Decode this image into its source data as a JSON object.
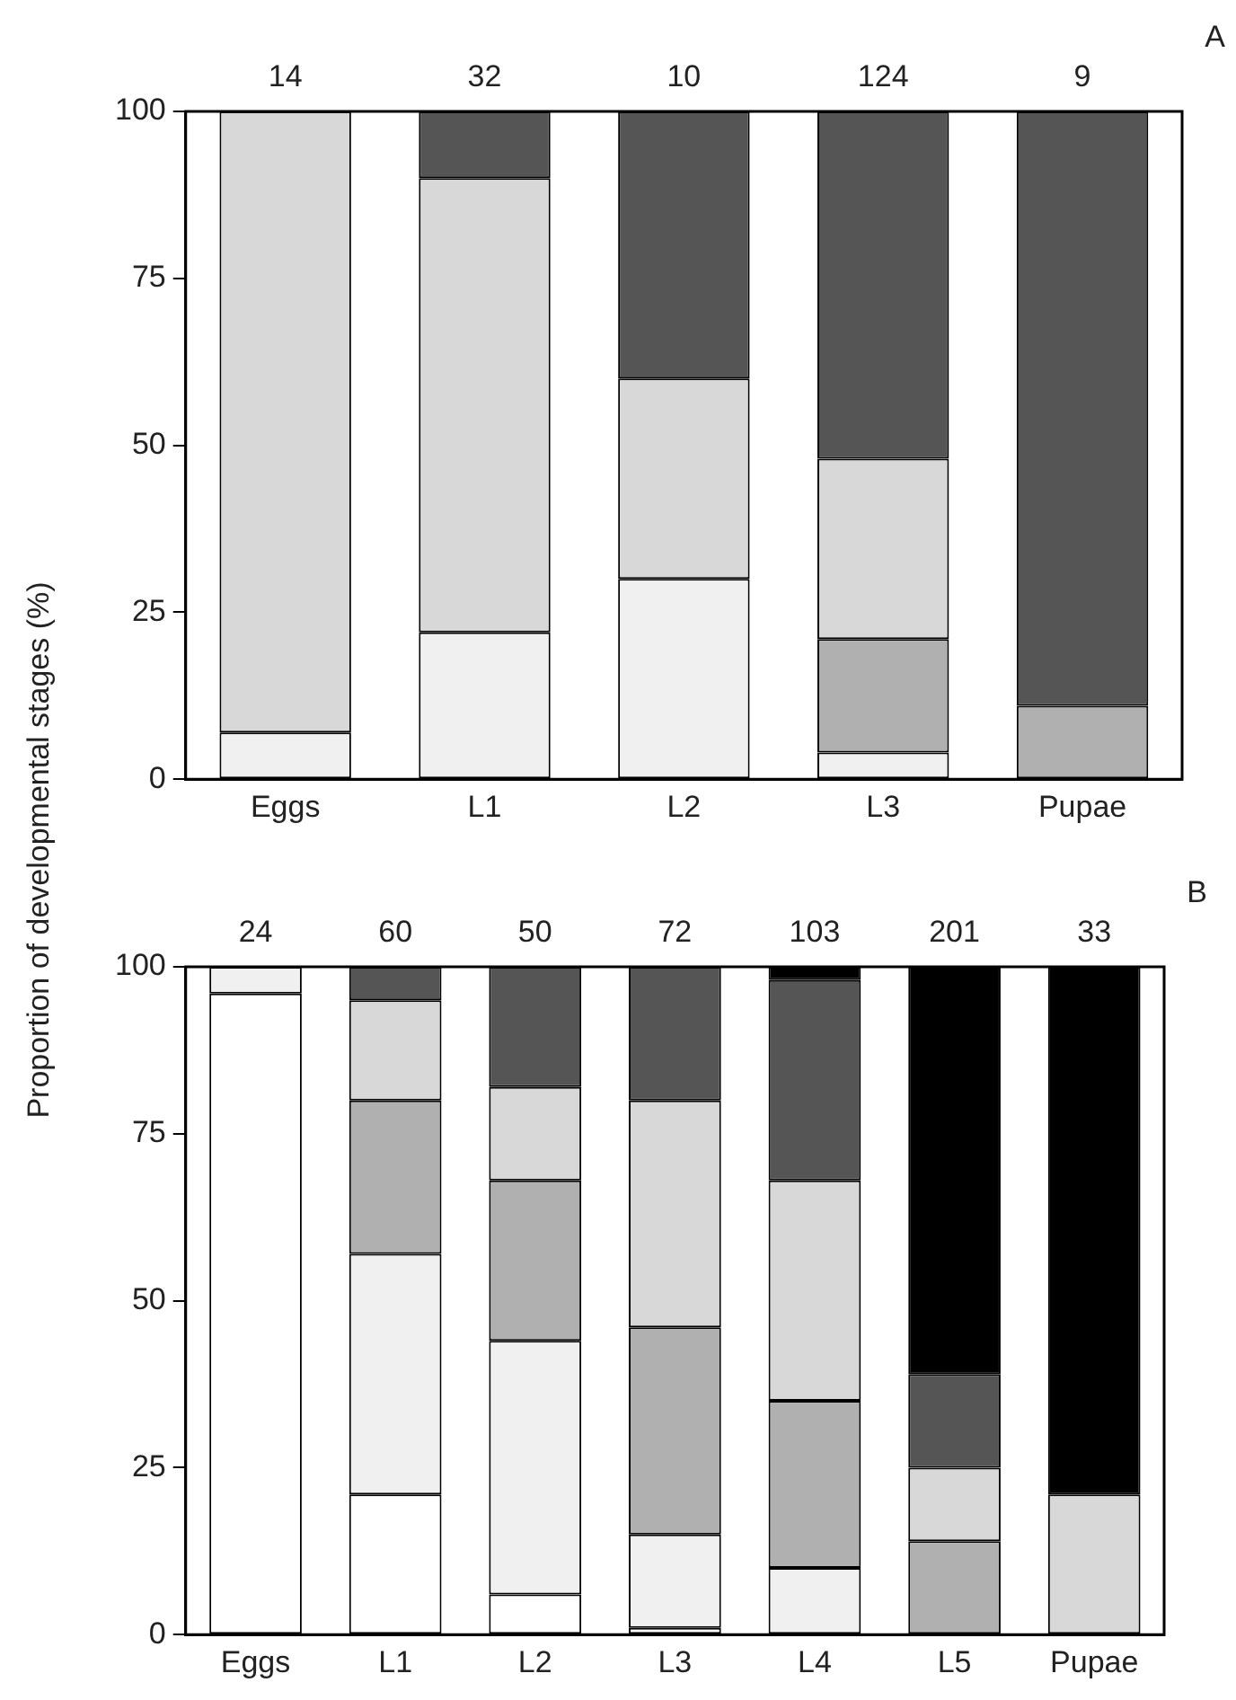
{
  "chart_data": [
    {
      "type": "bar",
      "stacked": true,
      "ylabel": "Proportion of developmental stages (%)",
      "categories": [
        "Eggs",
        "L1",
        "L2",
        "L3",
        "Pupae"
      ],
      "ylim": [
        0,
        100
      ],
      "yticks": [
        0,
        25,
        50,
        75,
        100
      ],
      "annotations": [
        "A",
        {
          "text": "14",
          "x": "Eggs",
          "y": 100
        },
        {
          "text": "32",
          "x": "L1",
          "y": 100
        },
        {
          "text": "10",
          "x": "L2",
          "y": 100
        },
        {
          "text": "124",
          "x": "L3",
          "y": 100
        },
        {
          "text": "9",
          "x": "Pupae",
          "y": 100
        }
      ],
      "series": [
        {
          "color": "#f0f0f0",
          "values": [
            7,
            22,
            30,
            4,
            0
          ]
        },
        {
          "color": "#b0b0b0",
          "values": [
            0,
            0,
            0,
            17,
            11
          ]
        },
        {
          "color": "#d8d8d8",
          "values": [
            93,
            68,
            30,
            27,
            0
          ]
        },
        {
          "color": "#555555",
          "values": [
            0,
            10,
            40,
            52,
            89
          ]
        }
      ]
    },
    {
      "type": "bar",
      "stacked": true,
      "categories": [
        "Eggs",
        "L1",
        "L2",
        "L3",
        "L4",
        "L5",
        "Pupae"
      ],
      "ylim": [
        0,
        100
      ],
      "yticks": [
        0,
        25,
        50,
        75,
        100
      ],
      "annotations": [
        "B",
        {
          "text": "24",
          "x": "Eggs",
          "y": 100
        },
        {
          "text": "60",
          "x": "L1",
          "y": 100
        },
        {
          "text": "50",
          "x": "L2",
          "y": 100
        },
        {
          "text": "72",
          "x": "L3",
          "y": 100
        },
        {
          "text": "103",
          "x": "L4",
          "y": 100
        },
        {
          "text": "201",
          "x": "L5",
          "y": 100
        },
        {
          "text": "33",
          "x": "Pupae",
          "y": 100
        }
      ],
      "series": [
        {
          "color": "#ffffff",
          "values": [
            96,
            21,
            6,
            1,
            0,
            0,
            0
          ]
        },
        {
          "color": "#f0f0f0",
          "values": [
            4,
            36,
            38,
            14,
            10,
            0,
            0
          ]
        },
        {
          "color": "#b0b0b0",
          "values": [
            0,
            23,
            24,
            31,
            25,
            14,
            0
          ]
        },
        {
          "color": "#d8d8d8",
          "values": [
            0,
            15,
            14,
            34,
            33,
            11,
            21
          ]
        },
        {
          "color": "#555555",
          "values": [
            0,
            5,
            18,
            20,
            30,
            14,
            0
          ]
        },
        {
          "color": "#000000",
          "values": [
            0,
            0,
            0,
            0,
            2,
            61,
            79
          ]
        }
      ]
    }
  ]
}
